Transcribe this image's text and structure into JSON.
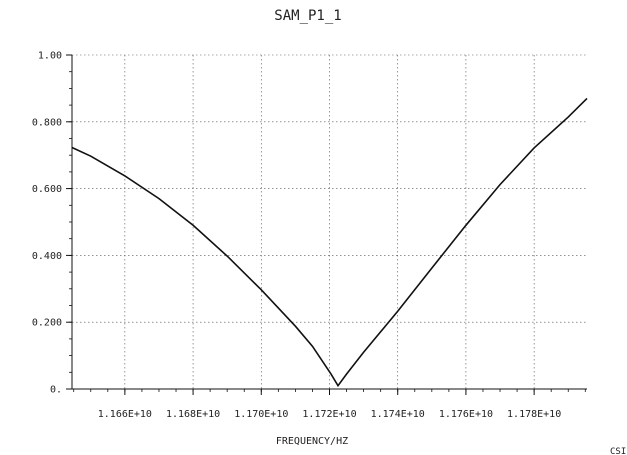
{
  "chart_data": {
    "type": "line",
    "title": "SAM_P1_1",
    "xlabel": "FREQUENCY/HZ",
    "ylabel": "",
    "xlim": [
      11644500000.0,
      11795500000.0
    ],
    "ylim": [
      0,
      1.0
    ],
    "x_ticks": [
      11660000000.0,
      11680000000.0,
      11700000000.0,
      11720000000.0,
      11740000000.0,
      11760000000.0,
      11780000000.0
    ],
    "x_tick_labels": [
      "1.166E+10",
      "1.168E+10",
      "1.170E+10",
      "1.172E+10",
      "1.174E+10",
      "1.176E+10",
      "1.178E+10"
    ],
    "y_ticks": [
      0,
      0.2,
      0.4,
      0.6,
      0.8,
      1.0
    ],
    "y_tick_labels": [
      "0.",
      "0.200",
      "0.400",
      "0.600",
      "0.800",
      "1.00"
    ],
    "grid": true,
    "series": [
      {
        "x": [
          11644500000.0,
          11650000000.0,
          11660000000.0,
          11670000000.0,
          11680000000.0,
          11690000000.0,
          11700000000.0,
          11710000000.0,
          11715000000.0,
          11720500000.0,
          11722500000.0,
          11725000000.0,
          11730000000.0,
          11740000000.0,
          11750000000.0,
          11760000000.0,
          11770000000.0,
          11780000000.0,
          11790000000.0,
          11795500000.0
        ],
        "y": [
          0.723,
          0.697,
          0.638,
          0.57,
          0.49,
          0.398,
          0.297,
          0.188,
          0.128,
          0.044,
          0.01,
          0.045,
          0.11,
          0.233,
          0.362,
          0.49,
          0.612,
          0.722,
          0.814,
          0.87
        ]
      }
    ]
  },
  "footer": {
    "corner_text": "CSI"
  }
}
